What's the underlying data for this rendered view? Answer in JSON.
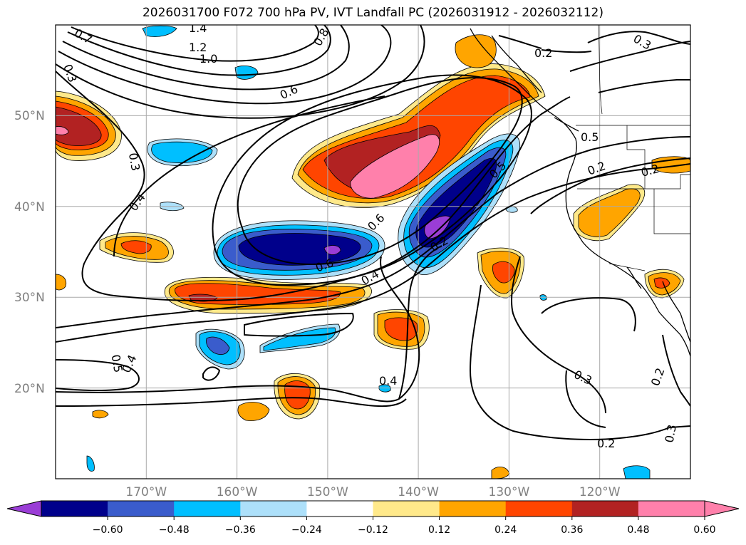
{
  "title": "2026031700 F072 700 hPa PV, IVT Landfall PC (2026031912 - 2026032112)",
  "map": {
    "lon_range": [
      -180,
      -110
    ],
    "lat_range": [
      10,
      60
    ],
    "lon_labels": [
      "170°W",
      "160°W",
      "150°W",
      "140°W",
      "130°W",
      "120°W"
    ],
    "lat_labels": [
      "50°N",
      "40°N",
      "30°N",
      "20°N"
    ],
    "gridlines": true,
    "label_color": "#808080"
  },
  "contour_labels": [
    "1.4",
    "1.2",
    "1.0",
    "0.8",
    "0.7",
    "0.6",
    "0.3",
    "0.3",
    "0.4",
    "0.2",
    "0.3",
    "0.5",
    "0.2",
    "0.2",
    "0.5",
    "0.6",
    "0.6",
    "0.4",
    "0.2",
    "0.4",
    "0.5",
    "0.4",
    "0.3",
    "0.2",
    "0.2",
    "0.3"
  ],
  "colorbar": {
    "ticks": [
      "−0.60",
      "−0.48",
      "−0.36",
      "−0.24",
      "−0.12",
      "0.12",
      "0.24",
      "0.36",
      "0.48",
      "0.60"
    ],
    "colors": [
      "#9a3dd6",
      "#00008b",
      "#3a5ccc",
      "#00bfff",
      "#ade0fa",
      "#ffffff",
      "#ffe98a",
      "#ffa500",
      "#ff4500",
      "#b22222",
      "#ff80ab",
      "#ff80ab"
    ]
  }
}
